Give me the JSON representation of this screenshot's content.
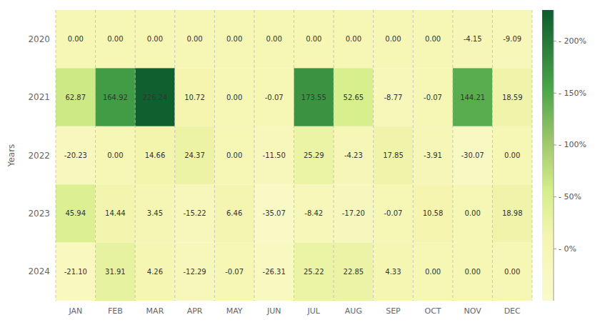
{
  "chart_data": {
    "type": "heatmap",
    "ylabel": "Years",
    "categories": [
      "JAN",
      "FEB",
      "MAR",
      "APR",
      "MAY",
      "JUN",
      "JUL",
      "AUG",
      "SEP",
      "OCT",
      "NOV",
      "DEC"
    ],
    "series": [
      {
        "name": "2020",
        "values": [
          0.0,
          0.0,
          0.0,
          0.0,
          0.0,
          0.0,
          0.0,
          0.0,
          0.0,
          0.0,
          -4.15,
          -9.09
        ],
        "value_labels": [
          "0.00",
          "0.00",
          "0.00",
          "0.00",
          "0.00",
          "0.00",
          "0.00",
          "0.00",
          "0.00",
          "0.00",
          "-4.15",
          "-9.09"
        ]
      },
      {
        "name": "2021",
        "values": [
          62.87,
          164.92,
          226.24,
          10.72,
          0.0,
          -0.07,
          173.55,
          52.65,
          -8.77,
          -0.07,
          144.21,
          18.59
        ],
        "value_labels": [
          "62.87",
          "164.92",
          "226.24",
          "10.72",
          "0.00",
          "-0.07",
          "173.55",
          "52.65",
          "-8.77",
          "-0.07",
          "144.21",
          "18.59"
        ]
      },
      {
        "name": "2022",
        "values": [
          -20.23,
          0.0,
          14.66,
          24.37,
          0.0,
          -11.5,
          25.29,
          -4.23,
          17.85,
          -3.91,
          -30.07,
          0.0
        ],
        "value_labels": [
          "-20.23",
          "0.00",
          "14.66",
          "24.37",
          "0.00",
          "-11.50",
          "25.29",
          "-4.23",
          "17.85",
          "-3.91",
          "-30.07",
          "0.00"
        ]
      },
      {
        "name": "2023",
        "values": [
          45.94,
          14.44,
          3.45,
          -15.22,
          6.46,
          -35.07,
          -8.42,
          -17.2,
          -0.07,
          10.58,
          0.0,
          18.98
        ],
        "value_labels": [
          "45.94",
          "14.44",
          "3.45",
          "-15.22",
          "6.46",
          "-35.07",
          "-8.42",
          "-17.20",
          "-0.07",
          "10.58",
          "0.00",
          "18.98"
        ]
      },
      {
        "name": "2024",
        "values": [
          -21.1,
          31.91,
          4.26,
          -12.29,
          -0.07,
          -26.31,
          25.22,
          22.85,
          4.33,
          0.0,
          0.0,
          0.0
        ],
        "value_labels": [
          "-21.10",
          "31.91",
          "4.26",
          "-12.29",
          "-0.07",
          "-26.31",
          "25.22",
          "22.85",
          "4.33",
          "0.00",
          "0.00",
          "0.00"
        ]
      }
    ],
    "data_labels": true,
    "grid": true,
    "colorbar_range": [
      -50,
      230
    ],
    "colorbar_ticks": [
      {
        "value": 0,
        "label": "- 0%"
      },
      {
        "value": 50,
        "label": "- 50%"
      },
      {
        "value": 100,
        "label": "- 100%"
      },
      {
        "value": 150,
        "label": "- 150%"
      },
      {
        "value": 200,
        "label": "- 200%"
      }
    ]
  }
}
